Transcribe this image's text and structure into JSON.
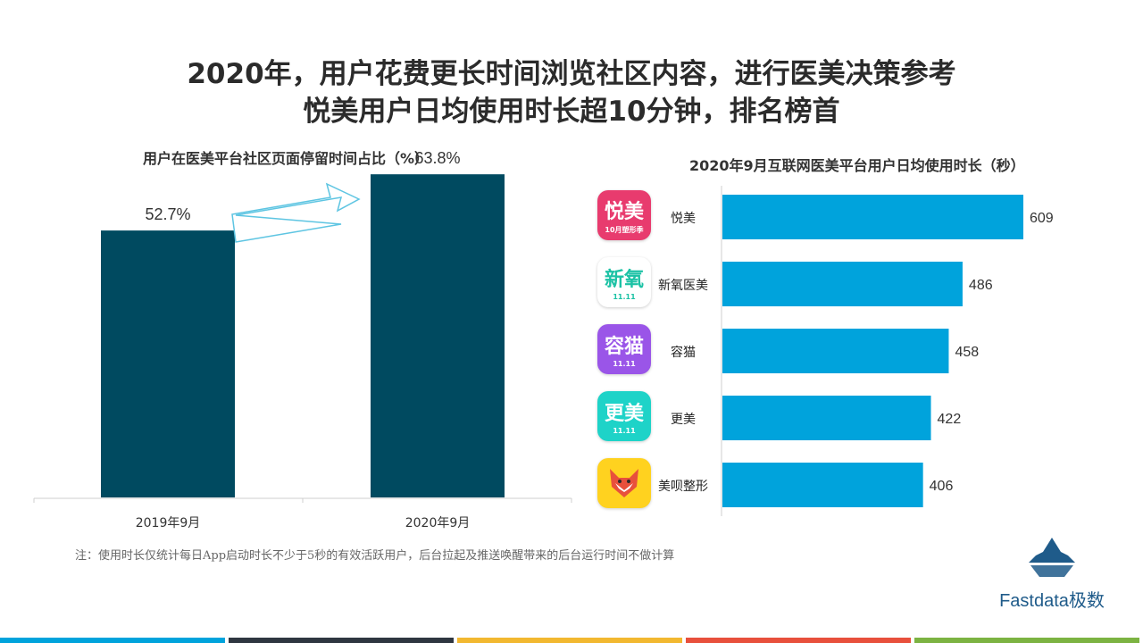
{
  "title_line1": "2020年，用户花费更长时间浏览社区内容，进行医美决策参考",
  "title_line2": "悦美用户日均使用时长超10分钟，排名榜首",
  "note": "注：使用时长仅统计每日App启动时长不少于5秒的有效活跃用户，后台拉起及推送唤醒带来的后台运行时间不做计算",
  "brand": "Fastdata极数",
  "colors": {
    "left_bar": "#004a60",
    "right_bar": "#00a3dc",
    "arrow": "#5ec5e2",
    "footer": [
      "#00a3dc",
      "#2f3640",
      "#f2b830",
      "#e8503c",
      "#7cb342"
    ]
  },
  "apps": [
    {
      "icon_text": "悦美",
      "icon_sub": "10月塑形季",
      "bg": "#e83b6e",
      "fg": "#ffffff"
    },
    {
      "icon_text": "新氧",
      "icon_sub": "11.11",
      "bg": "#ffffff",
      "fg": "#1cc2a5"
    },
    {
      "icon_text": "容猫",
      "icon_sub": "11.11",
      "bg": "#9a55e8",
      "fg": "#ffffff"
    },
    {
      "icon_text": "更美",
      "icon_sub": "11.11",
      "bg": "#1ed3c8",
      "fg": "#ffffff"
    },
    {
      "icon_text": "",
      "icon_sub": "",
      "bg": "#ffd21f",
      "fg": "#e8503c",
      "icon": "fox-logo-icon"
    }
  ],
  "chart_data": [
    {
      "type": "bar",
      "title": "用户在医美平台社区页面停留时间占比（%）",
      "categories": [
        "2019年9月",
        "2020年9月"
      ],
      "values": [
        52.7,
        63.8
      ],
      "value_labels": [
        "52.7%",
        "63.8%"
      ],
      "ylim": [
        0,
        70
      ],
      "grid": false,
      "legend": "none"
    },
    {
      "type": "bar",
      "orientation": "horizontal",
      "title": "2020年9月互联网医美平台用户日均使用时长（秒）",
      "categories": [
        "悦美",
        "新氧医美",
        "容猫",
        "更美",
        "美呗整形"
      ],
      "values": [
        609,
        486,
        458,
        422,
        406
      ],
      "xlim": [
        0,
        640
      ],
      "grid": false,
      "legend": "none"
    }
  ]
}
